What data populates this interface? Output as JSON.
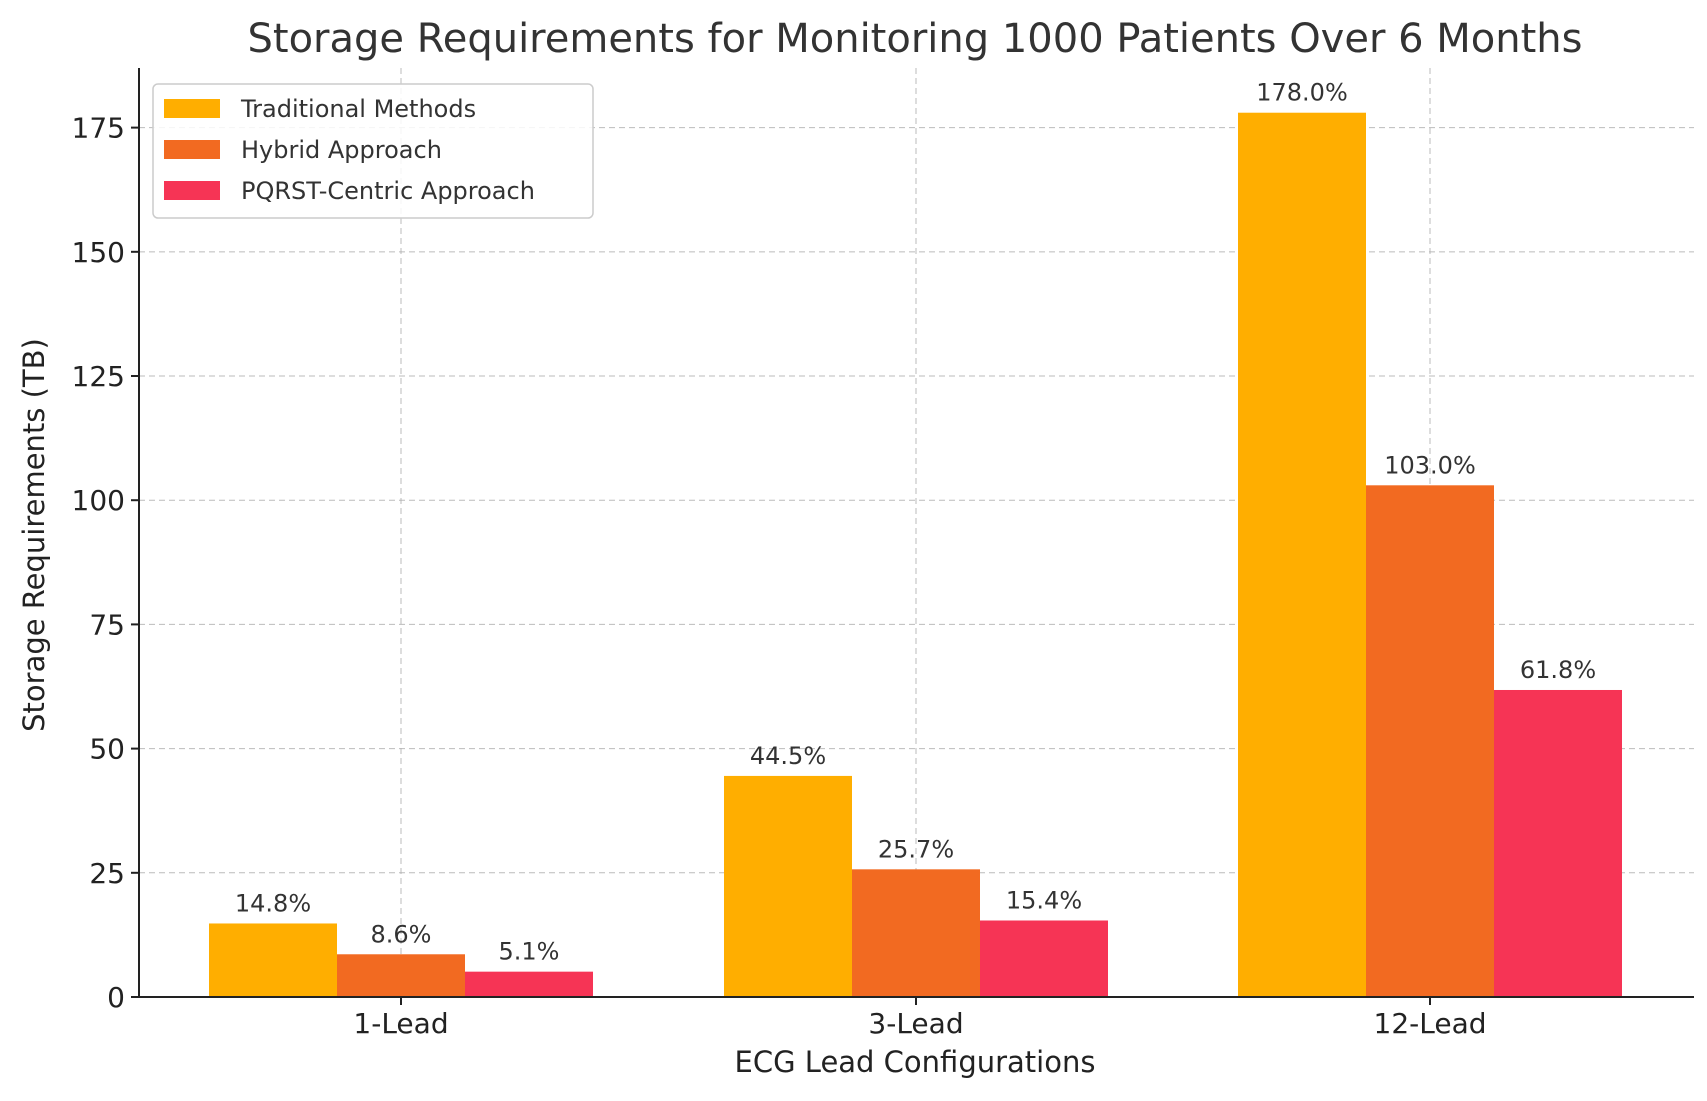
{
  "chart_data": {
    "type": "bar",
    "title": "Storage Requirements for Monitoring 1000 Patients Over 6 Months",
    "xlabel": "ECG Lead Configurations",
    "ylabel": "Storage Requirements (TB)",
    "categories": [
      "1-Lead",
      "3-Lead",
      "12-Lead"
    ],
    "series": [
      {
        "name": "Traditional Methods",
        "color": "#FFAE00",
        "values": [
          14.8,
          44.5,
          178.0
        ],
        "labels": [
          "14.8%",
          "44.5%",
          "178.0%"
        ]
      },
      {
        "name": "Hybrid Approach",
        "color": "#F26A21",
        "values": [
          8.6,
          25.7,
          103.0
        ],
        "labels": [
          "8.6%",
          "25.7%",
          "103.0%"
        ]
      },
      {
        "name": "PQRST-Centric Approach",
        "color": "#F63455",
        "values": [
          5.1,
          15.4,
          61.8
        ],
        "labels": [
          "5.1%",
          "15.4%",
          "61.8%"
        ]
      }
    ],
    "ylim": [
      0,
      187
    ],
    "yticks": [
      0,
      25,
      50,
      75,
      100,
      125,
      150,
      175
    ],
    "grid": true,
    "legend": "top-left"
  }
}
